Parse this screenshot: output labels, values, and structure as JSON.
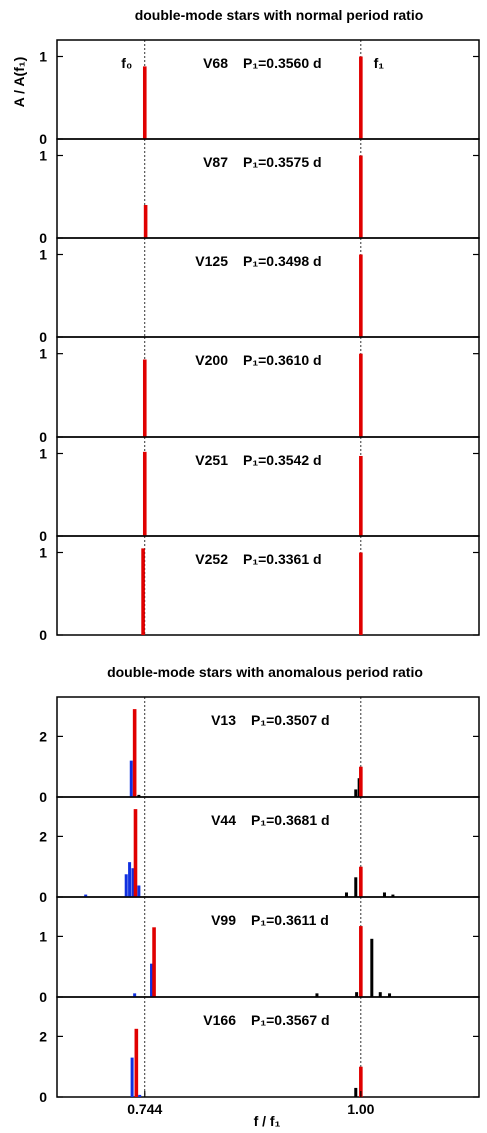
{
  "chart_data": [
    {
      "type": "bar",
      "group_title": "double-mode stars with normal period ratio",
      "ylabel": "A / A(f₁)",
      "xlim": [
        0.64,
        1.14
      ],
      "ylim": [
        0,
        1.2
      ],
      "yticks": [
        0,
        1
      ],
      "dashed_lines_at": [
        0.744,
        1.0
      ],
      "peak_labels": [
        {
          "text": "f₀",
          "x": 0.744
        },
        {
          "text": "f₁",
          "x": 1.0
        }
      ],
      "panels": [
        {
          "star": "V68",
          "period": "P₁=0.3560 d",
          "bars": [
            {
              "x": 0.744,
              "y": 0.88,
              "color": "#e00000"
            },
            {
              "x": 1.0,
              "y": 1.0,
              "color": "#e00000"
            }
          ]
        },
        {
          "star": "V87",
          "period": "P₁=0.3575 d",
          "bars": [
            {
              "x": 0.745,
              "y": 0.4,
              "color": "#e00000"
            },
            {
              "x": 1.0,
              "y": 1.0,
              "color": "#e00000"
            }
          ]
        },
        {
          "star": "V125",
          "period": "P₁=0.3498 d",
          "bars": [
            {
              "x": 1.0,
              "y": 1.0,
              "color": "#e00000"
            }
          ]
        },
        {
          "star": "V200",
          "period": "P₁=0.3610 d",
          "bars": [
            {
              "x": 0.744,
              "y": 0.93,
              "color": "#e00000"
            },
            {
              "x": 1.0,
              "y": 1.0,
              "color": "#e00000"
            }
          ]
        },
        {
          "star": "V251",
          "period": "P₁=0.3542 d",
          "bars": [
            {
              "x": 0.744,
              "y": 1.02,
              "color": "#e00000"
            },
            {
              "x": 1.0,
              "y": 0.97,
              "color": "#e00000"
            }
          ]
        },
        {
          "star": "V252",
          "period": "P₁=0.3361 d",
          "bars": [
            {
              "x": 0.742,
              "y": 1.05,
              "color": "#e00000"
            },
            {
              "x": 1.0,
              "y": 1.0,
              "color": "#e00000"
            }
          ]
        }
      ]
    },
    {
      "type": "bar",
      "group_title": "double-mode stars with anomalous period ratio",
      "xlabel": "f / f₁",
      "xlim": [
        0.64,
        1.14
      ],
      "xticks": [
        {
          "value": 0.744,
          "label": "0.744"
        },
        {
          "value": 1.0,
          "label": "1.00"
        }
      ],
      "dashed_lines_at": [
        0.744,
        1.0
      ],
      "panels": [
        {
          "star": "V13",
          "period": "P₁=0.3507 d",
          "ylim": [
            0,
            3.3
          ],
          "yticks": [
            0,
            2
          ],
          "bars": [
            {
              "x": 0.728,
              "y": 1.2,
              "color": "#1030e0"
            },
            {
              "x": 0.732,
              "y": 2.9,
              "color": "#e00000"
            },
            {
              "x": 0.737,
              "y": 0.07,
              "color": "#000000"
            },
            {
              "x": 0.994,
              "y": 0.25,
              "color": "#000000"
            },
            {
              "x": 0.998,
              "y": 0.62,
              "color": "#000000"
            },
            {
              "x": 1.0,
              "y": 1.0,
              "color": "#e00000"
            }
          ]
        },
        {
          "star": "V44",
          "period": "P₁=0.3681 d",
          "ylim": [
            0,
            3.3
          ],
          "yticks": [
            0,
            2
          ],
          "bars": [
            {
              "x": 0.674,
              "y": 0.08,
              "color": "#1030e0"
            },
            {
              "x": 0.722,
              "y": 0.75,
              "color": "#1030e0"
            },
            {
              "x": 0.726,
              "y": 1.15,
              "color": "#1030e0"
            },
            {
              "x": 0.73,
              "y": 0.95,
              "color": "#1030e0"
            },
            {
              "x": 0.733,
              "y": 2.9,
              "color": "#e00000"
            },
            {
              "x": 0.737,
              "y": 0.38,
              "color": "#1030e0"
            },
            {
              "x": 0.983,
              "y": 0.15,
              "color": "#000000"
            },
            {
              "x": 0.994,
              "y": 0.65,
              "color": "#000000"
            },
            {
              "x": 1.0,
              "y": 1.0,
              "color": "#e00000"
            },
            {
              "x": 1.028,
              "y": 0.15,
              "color": "#000000"
            },
            {
              "x": 1.038,
              "y": 0.08,
              "color": "#000000"
            }
          ]
        },
        {
          "star": "V99",
          "period": "P₁=0.3611 d",
          "ylim": [
            0,
            1.65
          ],
          "yticks": [
            0,
            1
          ],
          "bars": [
            {
              "x": 0.732,
              "y": 0.06,
              "color": "#1030e0"
            },
            {
              "x": 0.752,
              "y": 0.55,
              "color": "#1030e0"
            },
            {
              "x": 0.755,
              "y": 1.15,
              "color": "#e00000"
            },
            {
              "x": 0.948,
              "y": 0.06,
              "color": "#000000"
            },
            {
              "x": 0.995,
              "y": 0.08,
              "color": "#000000"
            },
            {
              "x": 1.0,
              "y": 1.17,
              "color": "#e00000"
            },
            {
              "x": 1.013,
              "y": 0.96,
              "color": "#000000"
            },
            {
              "x": 1.023,
              "y": 0.08,
              "color": "#000000"
            },
            {
              "x": 1.034,
              "y": 0.06,
              "color": "#000000"
            }
          ]
        },
        {
          "star": "V166",
          "period": "P₁=0.3567 d",
          "ylim": [
            0,
            3.3
          ],
          "yticks": [
            0,
            2
          ],
          "bars": [
            {
              "x": 0.729,
              "y": 1.3,
              "color": "#1030e0"
            },
            {
              "x": 0.734,
              "y": 2.25,
              "color": "#e00000"
            },
            {
              "x": 0.738,
              "y": 0.07,
              "color": "#1030e0"
            },
            {
              "x": 0.994,
              "y": 0.3,
              "color": "#000000"
            },
            {
              "x": 1.0,
              "y": 1.0,
              "color": "#e00000"
            }
          ]
        }
      ]
    }
  ]
}
